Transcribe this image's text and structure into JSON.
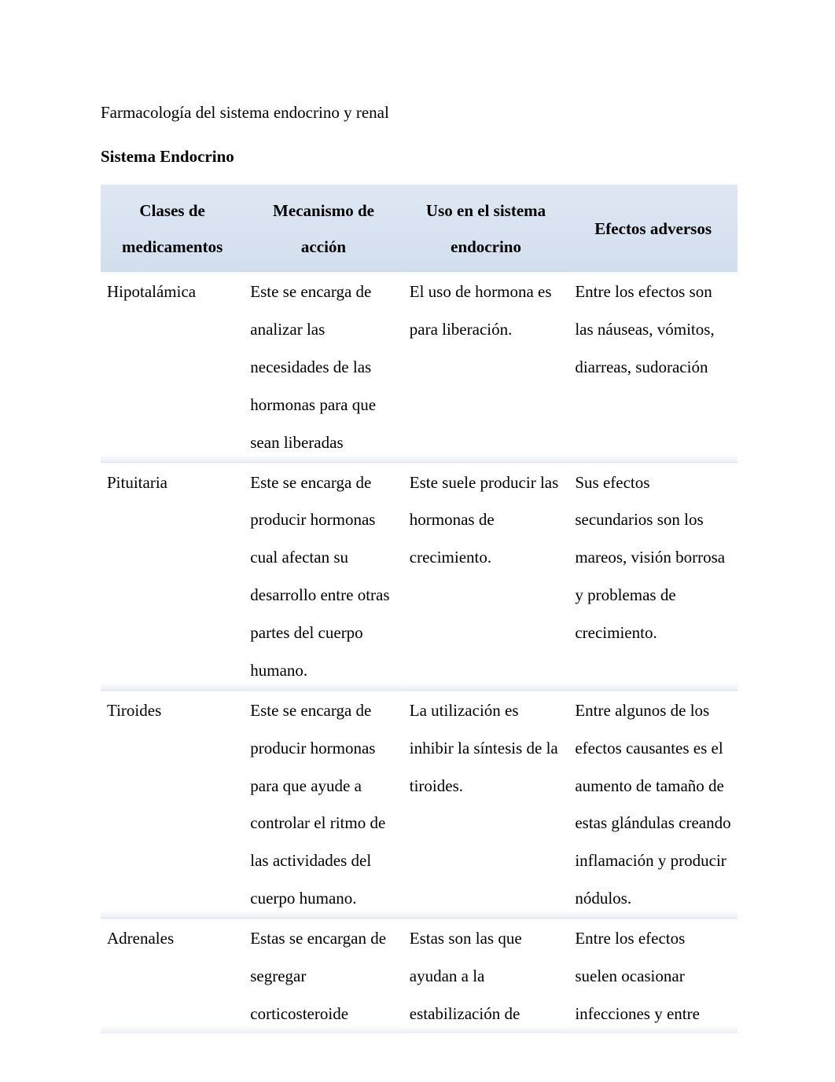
{
  "page": {
    "title": "Farmacología del sistema endocrino y renal",
    "subtitle": "Sistema Endocrino",
    "background_color": "#ffffff",
    "text_color": "#000000",
    "font_family": "Times New Roman",
    "title_fontsize": 21,
    "subtitle_fontsize": 21
  },
  "table": {
    "header_bg_color": "#d9e2f1",
    "header_fontsize": 21,
    "header_fontweight": "bold",
    "cell_fontsize": 21,
    "row_shadow_color": "#d2dae8",
    "columns": [
      {
        "label": "Clases de medicamentos",
        "width_pct": 22.5
      },
      {
        "label": "Mecanismo de acción",
        "width_pct": 25.0
      },
      {
        "label": "Uso en el sistema endocrino",
        "width_pct": 26.0
      },
      {
        "label": "Efectos adversos",
        "width_pct": 26.5
      }
    ],
    "rows": [
      {
        "clase": "Hipotalámica",
        "mecanismo": "Este se encarga de analizar las necesidades de las hormonas para que sean liberadas",
        "uso": "El uso de hormona es para liberación.",
        "efectos": "Entre los efectos son las náuseas, vómitos, diarreas, sudoración"
      },
      {
        "clase": "Pituitaria",
        "mecanismo": "Este se encarga de producir hormonas cual afectan su desarrollo entre otras partes del cuerpo humano.",
        "uso": "Este suele producir las hormonas de crecimiento.",
        "efectos": "Sus efectos secundarios son los mareos, visión borrosa y problemas de crecimiento."
      },
      {
        "clase": "Tiroides",
        "mecanismo": "Este se encarga de producir hormonas para que ayude a controlar el ritmo de las actividades del cuerpo humano.",
        "uso": " La utilización es inhibir la síntesis de la tiroides.",
        "efectos": "Entre algunos de los efectos causantes es el aumento de tamaño de estas glándulas creando inflamación y producir nódulos."
      },
      {
        "clase": "Adrenales",
        "mecanismo": "Estas se encargan de segregar corticosteroide",
        "uso": "Estas son las que ayudan a la estabilización de",
        "efectos": "Entre los efectos suelen ocasionar infecciones y entre"
      }
    ]
  }
}
